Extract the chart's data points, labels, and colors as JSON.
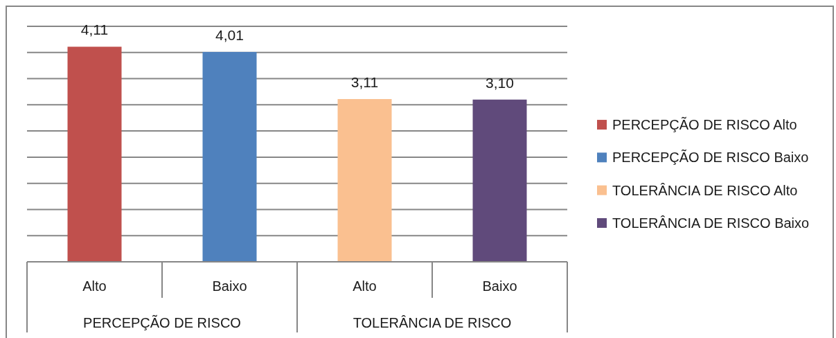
{
  "chart_data": {
    "type": "bar",
    "categories": [
      "Alto",
      "Baixo",
      "Alto",
      "Baixo"
    ],
    "series": [
      {
        "name": "PERCEPÇÃO DE RISCO Alto",
        "color": "#c0504d",
        "values": [
          4.11,
          null,
          null,
          null
        ],
        "value_labels": [
          "4,11",
          null,
          null,
          null
        ]
      },
      {
        "name": "PERCEPÇÃO DE RISCO Baixo",
        "color": "#4f81bd",
        "values": [
          null,
          4.01,
          null,
          null
        ],
        "value_labels": [
          null,
          "4,01",
          null,
          null
        ]
      },
      {
        "name": "TOLERÂNCIA DE RISCO Alto",
        "color": "#fac090",
        "values": [
          null,
          null,
          3.11,
          null
        ],
        "value_labels": [
          null,
          null,
          "3,11",
          null
        ]
      },
      {
        "name": "TOLERÂNCIA DE RISCO Baixo",
        "color": "#604a7b",
        "values": [
          null,
          null,
          null,
          3.1
        ],
        "value_labels": [
          null,
          null,
          null,
          "3,10"
        ]
      }
    ],
    "annotations": [
      "PERCEPÇÃO DE RISCO",
      "TOLERÂNCIA DE RISCO"
    ],
    "ylim": [
      0,
      4.5
    ],
    "yticks": [
      {
        "value": 0,
        "label": null
      },
      {
        "value": 0.5,
        "label": null
      },
      {
        "value": 1,
        "label": null
      },
      {
        "value": 1.5,
        "label": null
      },
      {
        "value": 2,
        "label": null
      },
      {
        "value": 2.5,
        "label": null
      },
      {
        "value": 3,
        "label": null
      },
      {
        "value": 3.5,
        "label": null
      },
      {
        "value": 4,
        "label": null
      },
      {
        "value": 4.5,
        "label": null
      }
    ],
    "tick_labels": "x",
    "grid": "y",
    "legend": "right"
  }
}
